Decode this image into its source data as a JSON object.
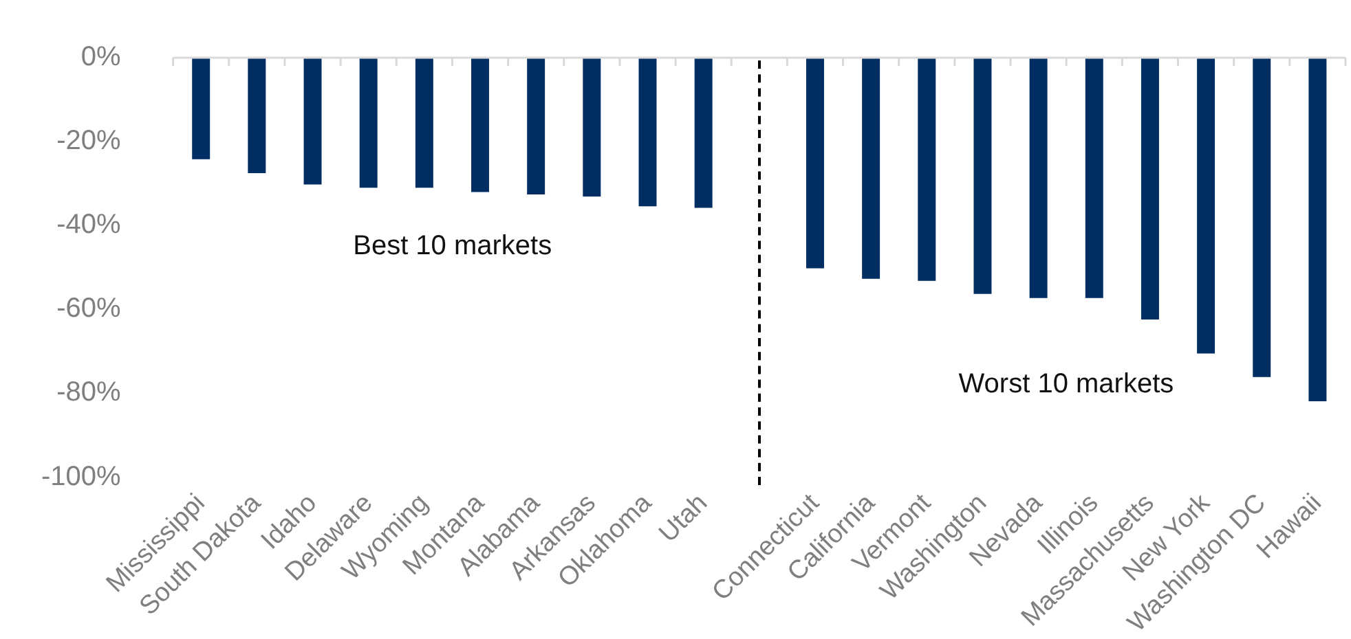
{
  "chart_data": {
    "type": "bar",
    "categories": [
      "Mississippi",
      "South Dakota",
      "Idaho",
      "Delaware",
      "Wyoming",
      "Montana",
      "Alabama",
      "Arkansas",
      "Oklahoma",
      "Utah",
      null,
      "Connecticut",
      "California",
      "Vermont",
      "Washington",
      "Nevada",
      "Illinois",
      "Massachusetts",
      "New York",
      "Washington DC",
      "Hawaii"
    ],
    "values": [
      -24.2,
      -27.5,
      -30.2,
      -31,
      -31,
      -32,
      -32.6,
      -33.1,
      -35.4,
      -35.8,
      null,
      -50.2,
      -52.7,
      -53.2,
      -56.3,
      -57.3,
      -57.3,
      -62.4,
      -70.5,
      -76.1,
      -81.9
    ],
    "color": "#002d62",
    "ylim": [
      -100,
      0
    ],
    "yticks": [
      {
        "value": 0,
        "label": "0%"
      },
      {
        "value": -20,
        "label": "-20%"
      },
      {
        "value": -40,
        "label": "-40%"
      },
      {
        "value": -60,
        "label": "-60%"
      },
      {
        "value": -80,
        "label": "-80%"
      },
      {
        "value": -100,
        "label": "-100%"
      }
    ],
    "annotations": [
      "Best 10 markets",
      "Worst 10 markets"
    ],
    "legend": false
  }
}
